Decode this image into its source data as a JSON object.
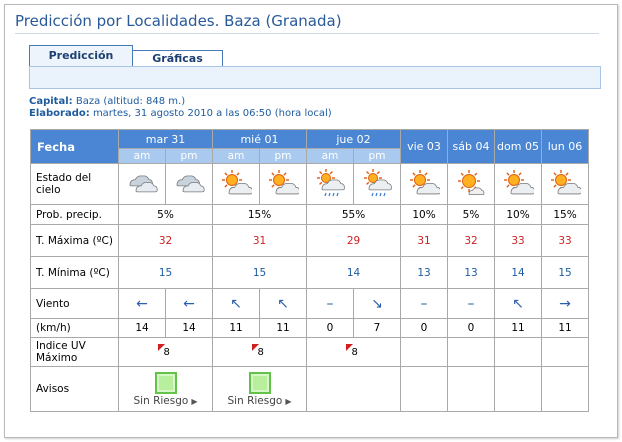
{
  "page": {
    "title": "Predicción por Localidades. Baza (Granada)",
    "tabs": [
      {
        "label": "Predicción",
        "active": true
      },
      {
        "label": "Gráficas",
        "active": false
      }
    ],
    "capital_label": "Capital:",
    "capital_value": "Baza (altitud: 848 m.)",
    "elaborado_label": "Elaborado:",
    "elaborado_value": "martes, 31 agosto 2010 a las 06:50 (hora local)"
  },
  "forecast": {
    "row_labels": {
      "fecha": "Fecha",
      "estado": "Estado del cielo",
      "prob": "Prob. precip.",
      "tmax": "T. Máxima (ºC)",
      "tmin": "T. Mínima (ºC)",
      "viento": "Viento",
      "kmh": "(km/h)",
      "uv": "Indice UV Máximo",
      "avisos": "Avisos"
    },
    "subheaders": {
      "am": "am",
      "pm": "pm"
    },
    "days": [
      {
        "label": "mar 31",
        "split": true,
        "sky": [
          "cloudy-icon",
          "cloudy-icon"
        ],
        "prob": "5%",
        "tmax": "32",
        "tmin": "15",
        "wind_dir": [
          "arrow-left-icon",
          "arrow-left-icon"
        ],
        "wind_kmh": [
          "14",
          "14"
        ],
        "uv": "8",
        "aviso": "Sin Riesgo"
      },
      {
        "label": "mié 01",
        "split": true,
        "sky": [
          "sun-cloud-icon",
          "sun-cloud-icon"
        ],
        "prob": "15%",
        "tmax": "31",
        "tmin": "15",
        "wind_dir": [
          "arrow-up-left-icon",
          "arrow-up-left-icon"
        ],
        "wind_kmh": [
          "11",
          "11"
        ],
        "uv": "8",
        "aviso": "Sin Riesgo"
      },
      {
        "label": "jue 02",
        "split": true,
        "sky": [
          "sun-cloud-rain-icon",
          "sun-cloud-rain-icon"
        ],
        "prob": "55%",
        "tmax": "29",
        "tmin": "14",
        "wind_dir": [
          "calm-dash-icon",
          "arrow-down-right-icon"
        ],
        "wind_kmh": [
          "0",
          "7"
        ],
        "uv": "8",
        "aviso": ""
      },
      {
        "label": "vie 03",
        "split": false,
        "sky": [
          "sun-cloud-icon"
        ],
        "prob": "10%",
        "tmax": "31",
        "tmin": "13",
        "wind_dir": [
          "calm-dash-icon"
        ],
        "wind_kmh": [
          "0"
        ],
        "uv": "",
        "aviso": ""
      },
      {
        "label": "sáb 04",
        "split": false,
        "sky": [
          "sun-small-cloud-icon"
        ],
        "prob": "5%",
        "tmax": "32",
        "tmin": "13",
        "wind_dir": [
          "calm-dash-icon"
        ],
        "wind_kmh": [
          "0"
        ],
        "uv": "",
        "aviso": ""
      },
      {
        "label": "dom 05",
        "split": false,
        "sky": [
          "sun-cloud-icon"
        ],
        "prob": "10%",
        "tmax": "33",
        "tmin": "14",
        "wind_dir": [
          "arrow-up-left-icon"
        ],
        "wind_kmh": [
          "11"
        ],
        "uv": "",
        "aviso": ""
      },
      {
        "label": "lun 06",
        "split": false,
        "sky": [
          "sun-cloud-icon"
        ],
        "prob": "15%",
        "tmax": "33",
        "tmin": "15",
        "wind_dir": [
          "arrow-right-icon"
        ],
        "wind_kmh": [
          "11"
        ],
        "uv": "",
        "aviso": ""
      }
    ]
  },
  "colors": {
    "header_blue": "#4a86d4",
    "subheader_blue": "#a9c9ef",
    "tmax_red": "#cc2222",
    "tmin_blue": "#1d5b9e",
    "risk_green": "#b7ef9d"
  }
}
